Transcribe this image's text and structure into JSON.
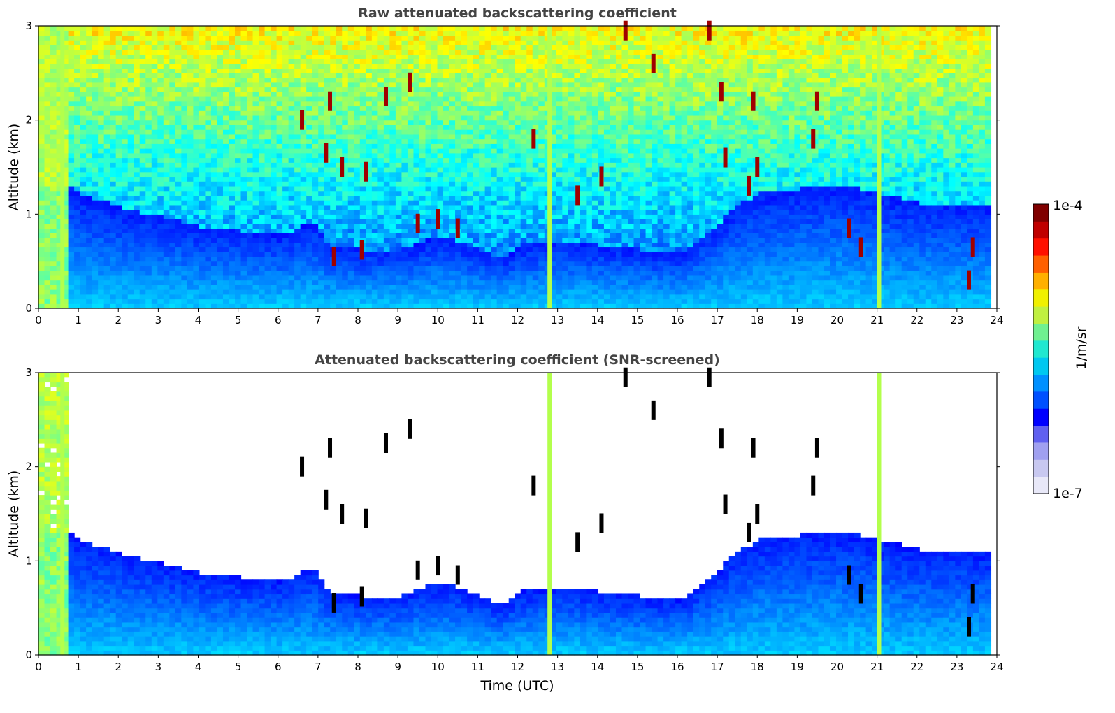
{
  "chart_data": [
    {
      "type": "heatmap",
      "title": "Raw attenuated backscattering coefficient",
      "xlabel": "",
      "ylabel": "Altitude (km)",
      "xlim": [
        0,
        24
      ],
      "ylim": [
        0,
        3
      ],
      "xticks": [
        "0",
        "1",
        "2",
        "3",
        "4",
        "5",
        "6",
        "7",
        "8",
        "9",
        "10",
        "11",
        "12",
        "13",
        "14",
        "15",
        "16",
        "17",
        "18",
        "19",
        "20",
        "21",
        "22",
        "23",
        "24"
      ],
      "yticks": [
        "0",
        "1",
        "2",
        "3"
      ],
      "colormap": "jet",
      "color_scale": "log",
      "data_time_range": [
        0,
        23.85
      ],
      "vertical_streaks_utc": [
        0.6,
        12.8,
        21.05
      ],
      "cloud_features": [
        {
          "t": 6.6,
          "z": 2.0
        },
        {
          "t": 7.3,
          "z": 2.2
        },
        {
          "t": 7.2,
          "z": 1.65
        },
        {
          "t": 7.6,
          "z": 1.5
        },
        {
          "t": 8.2,
          "z": 1.45
        },
        {
          "t": 8.7,
          "z": 2.25
        },
        {
          "t": 9.3,
          "z": 2.4
        },
        {
          "t": 9.5,
          "z": 0.9
        },
        {
          "t": 10.0,
          "z": 0.95
        },
        {
          "t": 10.5,
          "z": 0.85
        },
        {
          "t": 7.4,
          "z": 0.55
        },
        {
          "t": 8.1,
          "z": 0.62
        },
        {
          "t": 12.4,
          "z": 1.8
        },
        {
          "t": 13.5,
          "z": 1.2
        },
        {
          "t": 14.1,
          "z": 1.4
        },
        {
          "t": 14.7,
          "z": 2.95
        },
        {
          "t": 15.4,
          "z": 2.6
        },
        {
          "t": 16.8,
          "z": 2.95
        },
        {
          "t": 17.1,
          "z": 2.3
        },
        {
          "t": 17.2,
          "z": 1.6
        },
        {
          "t": 17.9,
          "z": 2.2
        },
        {
          "t": 17.8,
          "z": 1.3
        },
        {
          "t": 18.0,
          "z": 1.5
        },
        {
          "t": 19.4,
          "z": 1.8
        },
        {
          "t": 19.5,
          "z": 2.2
        },
        {
          "t": 20.3,
          "z": 0.85
        },
        {
          "t": 20.6,
          "z": 0.65
        },
        {
          "t": 23.3,
          "z": 0.3
        },
        {
          "t": 23.4,
          "z": 0.65
        }
      ]
    },
    {
      "type": "heatmap",
      "title": "Attenuated backscattering coefficient (SNR-screened)",
      "xlabel": "Time (UTC)",
      "ylabel": "Altitude (km)",
      "xlim": [
        0,
        24
      ],
      "ylim": [
        0,
        3
      ],
      "xticks": [
        "0",
        "1",
        "2",
        "3",
        "4",
        "5",
        "6",
        "7",
        "8",
        "9",
        "10",
        "11",
        "12",
        "13",
        "14",
        "15",
        "16",
        "17",
        "18",
        "19",
        "20",
        "21",
        "22",
        "23",
        "24"
      ],
      "yticks": [
        "0",
        "1",
        "2",
        "3"
      ],
      "colormap": "jet",
      "color_scale": "log",
      "data_time_range": [
        0,
        23.85
      ],
      "boundary_layer_top_km": [
        [
          0.7,
          1.3
        ],
        [
          1,
          1.2
        ],
        [
          2,
          1.05
        ],
        [
          3,
          0.95
        ],
        [
          4,
          0.85
        ],
        [
          5,
          0.8
        ],
        [
          6,
          0.75
        ],
        [
          6.8,
          0.9
        ],
        [
          7.2,
          0.65
        ],
        [
          8,
          0.6
        ],
        [
          9,
          0.6
        ],
        [
          10,
          0.75
        ],
        [
          11,
          0.6
        ],
        [
          11.6,
          0.5
        ],
        [
          12,
          0.65
        ],
        [
          13,
          0.7
        ],
        [
          14,
          0.65
        ],
        [
          15,
          0.6
        ],
        [
          16,
          0.55
        ],
        [
          17,
          0.9
        ],
        [
          17.5,
          1.1
        ],
        [
          18,
          1.2
        ],
        [
          19,
          1.25
        ],
        [
          20,
          1.3
        ],
        [
          21,
          1.2
        ],
        [
          22,
          1.1
        ],
        [
          23,
          1.1
        ],
        [
          23.85,
          1.05
        ]
      ]
    }
  ],
  "colorbar": {
    "label": "1/m/sr",
    "max_label": "1e-4",
    "min_label": "1e-7",
    "colors": [
      "#e8e8f8",
      "#c8c8f0",
      "#a0a0f0",
      "#6060f0",
      "#0000ff",
      "#0050ff",
      "#0090ff",
      "#00c8f0",
      "#20e8d0",
      "#70f090",
      "#c0f040",
      "#f0f000",
      "#ffb000",
      "#ff6000",
      "#ff1000",
      "#c00000",
      "#800000"
    ]
  }
}
